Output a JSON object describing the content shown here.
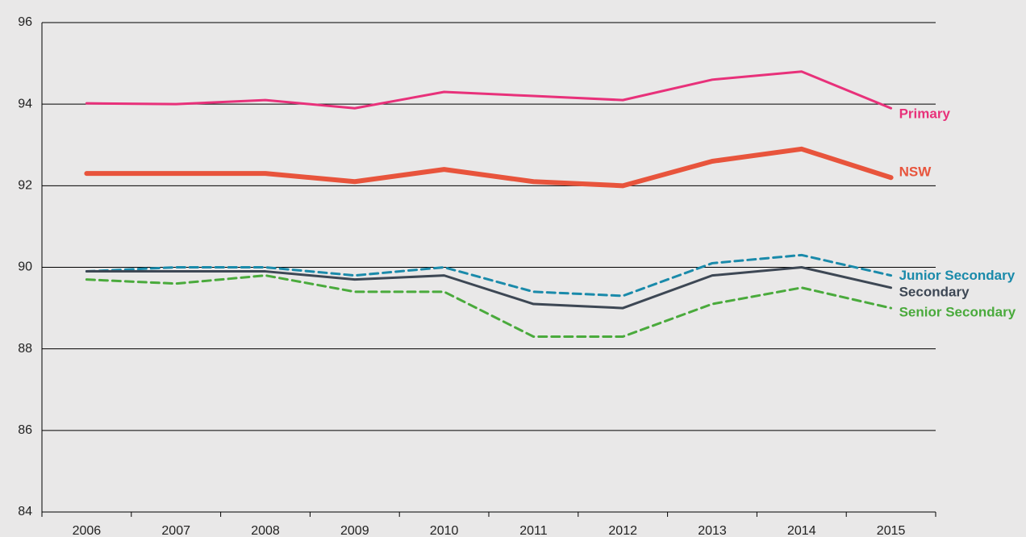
{
  "chart_data": {
    "type": "line",
    "categories": [
      "2006",
      "2007",
      "2008",
      "2009",
      "2010",
      "2011",
      "2012",
      "2013",
      "2014",
      "2015"
    ],
    "series": [
      {
        "name": "Primary",
        "color": "#e8317a",
        "dashed": false,
        "values": [
          94.02,
          94.0,
          94.1,
          93.9,
          94.3,
          94.2,
          94.1,
          94.6,
          94.8,
          93.9
        ]
      },
      {
        "name": "NSW",
        "color": "#e8543c",
        "dashed": false,
        "thick": true,
        "values": [
          92.3,
          92.3,
          92.3,
          92.1,
          92.4,
          92.1,
          92.0,
          92.6,
          92.9,
          92.2
        ]
      },
      {
        "name": "Junior Secondary",
        "color": "#1a8aaa",
        "dashed": true,
        "values": [
          89.9,
          90.0,
          90.0,
          89.8,
          90.0,
          89.4,
          89.3,
          90.1,
          90.3,
          89.8
        ]
      },
      {
        "name": "Secondary",
        "color": "#3d4754",
        "dashed": false,
        "values": [
          89.9,
          89.9,
          89.9,
          89.7,
          89.8,
          89.1,
          89.0,
          89.8,
          90.0,
          89.5
        ]
      },
      {
        "name": "Senior Secondary",
        "color": "#4aaa3c",
        "dashed": true,
        "values": [
          89.7,
          89.6,
          89.8,
          89.4,
          89.4,
          88.3,
          88.3,
          89.1,
          89.5,
          89.0
        ]
      }
    ],
    "ylim": [
      84,
      96
    ],
    "yticks": [
      84,
      86,
      88,
      90,
      92,
      94,
      96
    ],
    "grid": true
  }
}
